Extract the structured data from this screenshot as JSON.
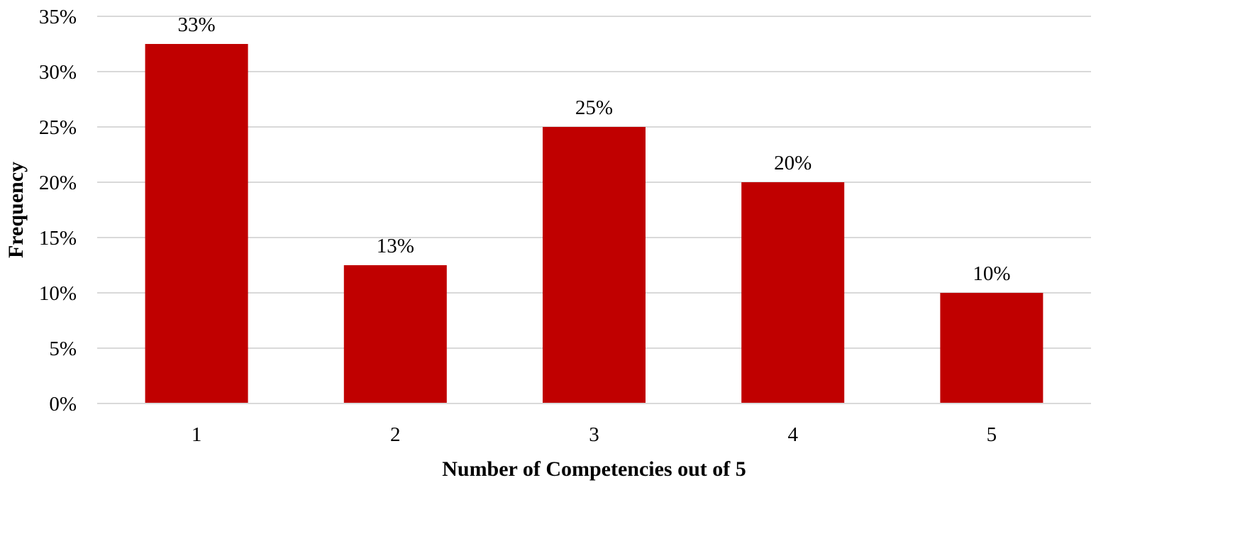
{
  "chart_data": {
    "type": "bar",
    "categories": [
      "1",
      "2",
      "3",
      "4",
      "5"
    ],
    "values": [
      32.5,
      12.5,
      25,
      20,
      10
    ],
    "data_labels": [
      "33%",
      "13%",
      "25%",
      "20%",
      "10%"
    ],
    "title": "",
    "xlabel": "Number of Competencies out of 5",
    "ylabel": "Frequency",
    "ylim": [
      0,
      35
    ],
    "yticks": [
      0,
      5,
      10,
      15,
      20,
      25,
      30,
      35
    ],
    "ytick_labels": [
      "0%",
      "5%",
      "10%",
      "15%",
      "20%",
      "25%",
      "30%",
      "35%"
    ],
    "grid": true,
    "legend": "none",
    "bar_color": "#c00000",
    "grid_color": "#d9d9d9"
  }
}
